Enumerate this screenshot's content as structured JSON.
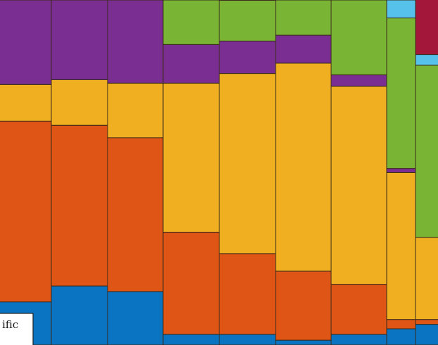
{
  "chart_data": {
    "type": "bar",
    "stacked": true,
    "normalized": true,
    "orientation": "vertical",
    "categories": [
      "",
      "",
      "",
      "",
      "",
      "",
      "",
      "",
      ""
    ],
    "ylim": [
      0,
      100
    ],
    "grid": false,
    "legend_position": "bottom-left",
    "legend_visible_text": "ific",
    "series": [
      {
        "color": "#0A74C2",
        "values": [
          12.5,
          17.1,
          15.5,
          3.1,
          3.1,
          1.4,
          3.1,
          4.7,
          6.0
        ]
      },
      {
        "color": "#DE5516",
        "values": [
          52.4,
          46.6,
          44.6,
          29.6,
          23.4,
          20.0,
          14.5,
          2.7,
          1.4
        ]
      },
      {
        "color": "#EFAF20",
        "values": [
          10.6,
          13.2,
          15.8,
          43.2,
          52.2,
          60.3,
          57.4,
          42.6,
          23.8
        ]
      },
      {
        "color": "#7A2E92",
        "values": [
          24.5,
          23.1,
          24.1,
          11.2,
          9.4,
          8.1,
          3.3,
          1.2,
          0.0
        ]
      },
      {
        "color": "#7AB434",
        "values": [
          0.0,
          0.0,
          0.0,
          12.9,
          11.8,
          10.2,
          21.7,
          43.6,
          49.9
        ]
      },
      {
        "color": "#56C2EB",
        "values": [
          0.0,
          0.0,
          0.0,
          0.0,
          0.0,
          0.0,
          0.0,
          5.2,
          3.1
        ]
      },
      {
        "color": "#A3183A",
        "values": [
          0.0,
          0.0,
          0.0,
          0.0,
          0.0,
          0.0,
          0.0,
          0.0,
          15.9
        ]
      }
    ]
  }
}
